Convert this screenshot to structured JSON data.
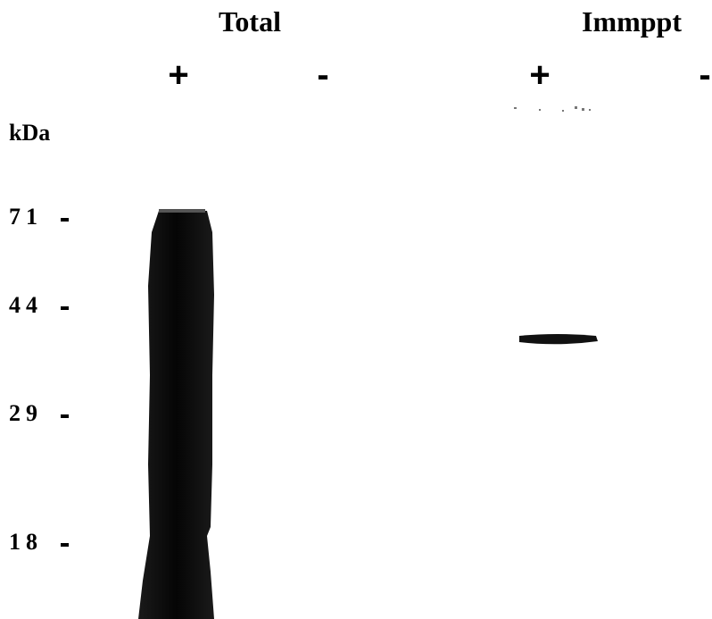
{
  "groups": [
    {
      "label": "Total",
      "lanes": [
        "+",
        "-"
      ]
    },
    {
      "label": "Immppt",
      "lanes": [
        "+",
        "-"
      ]
    }
  ],
  "unit": "kDa",
  "markers": [
    71,
    44,
    29,
    18
  ]
}
